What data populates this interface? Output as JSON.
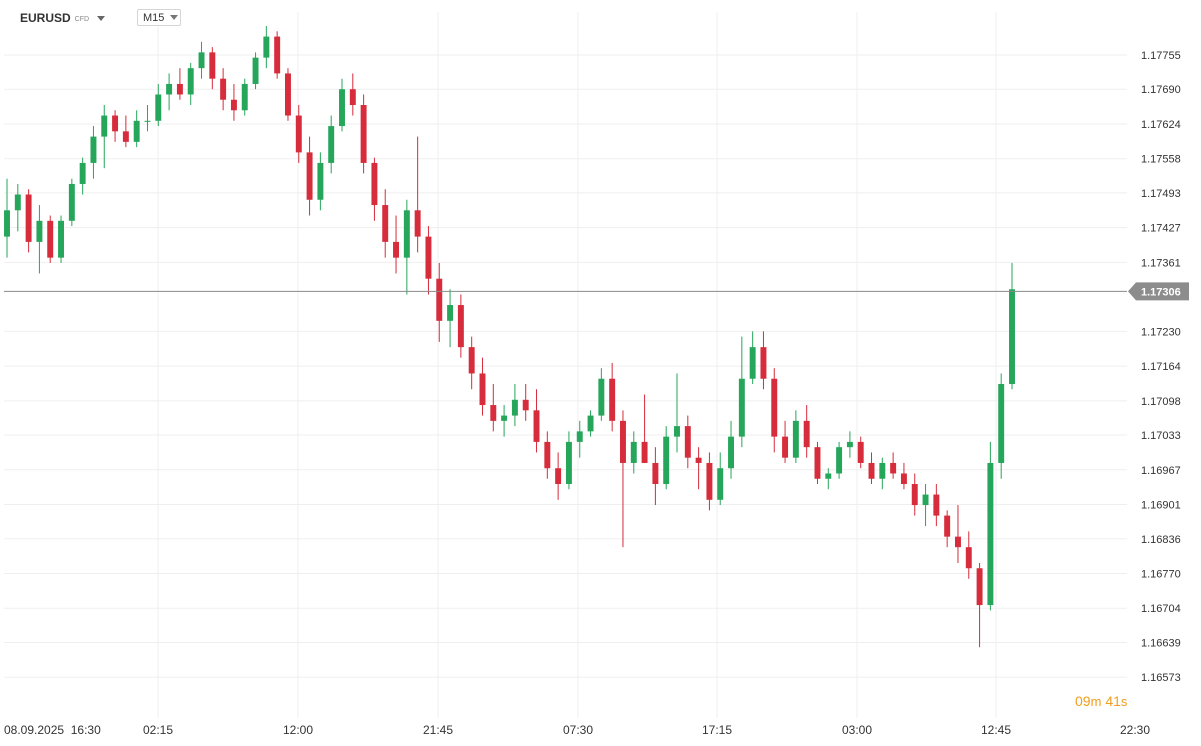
{
  "header": {
    "symbol": "EURUSD",
    "symbol_type": "CFD",
    "timeframe": "M15"
  },
  "countdown": {
    "minutes": "09",
    "minutes_unit": "m",
    "seconds": "41",
    "seconds_unit": "s"
  },
  "colors": {
    "up": "#26a65b",
    "down": "#d62c3b",
    "grid": "#efefef",
    "last_price_line": "#8a8a8a",
    "last_price_badge": "#8c8c8c",
    "countdown": "#f29d1e"
  },
  "chart_data": {
    "type": "candlestick",
    "symbol": "EURUSD",
    "timeframe": "M15",
    "last_price": 1.17306,
    "y_ticks": [
      "1.17755",
      "1.17690",
      "1.17624",
      "1.17558",
      "1.17493",
      "1.17427",
      "1.17361",
      "1.17230",
      "1.17164",
      "1.17098",
      "1.17033",
      "1.16967",
      "1.16901",
      "1.16836",
      "1.16770",
      "1.16704",
      "1.16639",
      "1.16573"
    ],
    "ylim": [
      1.16573,
      1.17821
    ],
    "x_ticks": [
      "08.09.2025  16:30",
      "02:15",
      "12:00",
      "21:45",
      "07:30",
      "17:15",
      "03:00",
      "12:45",
      "22:30"
    ],
    "grid": true,
    "candles_ohlc_approx": [
      [
        1.1741,
        1.1752,
        1.1737,
        1.1746
      ],
      [
        1.1746,
        1.1751,
        1.1742,
        1.1749
      ],
      [
        1.1749,
        1.175,
        1.1738,
        1.174
      ],
      [
        1.174,
        1.1747,
        1.1734,
        1.1744
      ],
      [
        1.1744,
        1.1745,
        1.1736,
        1.1737
      ],
      [
        1.1737,
        1.1745,
        1.1736,
        1.1744
      ],
      [
        1.1744,
        1.1752,
        1.1743,
        1.1751
      ],
      [
        1.1751,
        1.1756,
        1.1749,
        1.1755
      ],
      [
        1.1755,
        1.1762,
        1.1752,
        1.176
      ],
      [
        1.176,
        1.1766,
        1.1754,
        1.1764
      ],
      [
        1.1764,
        1.1765,
        1.1759,
        1.1761
      ],
      [
        1.1761,
        1.1764,
        1.1758,
        1.1759
      ],
      [
        1.1759,
        1.1765,
        1.1758,
        1.1763
      ],
      [
        1.1763,
        1.1766,
        1.1761,
        1.1763
      ],
      [
        1.1763,
        1.177,
        1.1762,
        1.1768
      ],
      [
        1.1768,
        1.1772,
        1.1765,
        1.177
      ],
      [
        1.177,
        1.1773,
        1.1767,
        1.1768
      ],
      [
        1.1768,
        1.1774,
        1.1766,
        1.1773
      ],
      [
        1.1773,
        1.1778,
        1.1771,
        1.1776
      ],
      [
        1.1776,
        1.1777,
        1.1769,
        1.1771
      ],
      [
        1.1771,
        1.1773,
        1.1765,
        1.1767
      ],
      [
        1.1767,
        1.177,
        1.1763,
        1.1765
      ],
      [
        1.1765,
        1.1771,
        1.1764,
        1.177
      ],
      [
        1.177,
        1.1776,
        1.1769,
        1.1775
      ],
      [
        1.1775,
        1.1781,
        1.1773,
        1.1779
      ],
      [
        1.1779,
        1.178,
        1.1771,
        1.1772
      ],
      [
        1.1772,
        1.1773,
        1.1763,
        1.1764
      ],
      [
        1.1764,
        1.1766,
        1.1755,
        1.1757
      ],
      [
        1.1757,
        1.176,
        1.1745,
        1.1748
      ],
      [
        1.1748,
        1.1757,
        1.1746,
        1.1755
      ],
      [
        1.1755,
        1.1764,
        1.1753,
        1.1762
      ],
      [
        1.1762,
        1.1771,
        1.1761,
        1.1769
      ],
      [
        1.1769,
        1.1772,
        1.1764,
        1.1766
      ],
      [
        1.1766,
        1.1768,
        1.1753,
        1.1755
      ],
      [
        1.1755,
        1.1756,
        1.1744,
        1.1747
      ],
      [
        1.1747,
        1.175,
        1.1737,
        1.174
      ],
      [
        1.174,
        1.1745,
        1.1734,
        1.1737
      ],
      [
        1.1737,
        1.1748,
        1.173,
        1.1746
      ],
      [
        1.1746,
        1.176,
        1.1738,
        1.1741
      ],
      [
        1.1741,
        1.1743,
        1.173,
        1.1733
      ],
      [
        1.1733,
        1.1736,
        1.1721,
        1.1725
      ],
      [
        1.1725,
        1.1731,
        1.172,
        1.1728
      ],
      [
        1.1728,
        1.173,
        1.1718,
        1.172
      ],
      [
        1.172,
        1.1722,
        1.1712,
        1.1715
      ],
      [
        1.1715,
        1.1718,
        1.1707,
        1.1709
      ],
      [
        1.1709,
        1.1713,
        1.1704,
        1.1706
      ],
      [
        1.1706,
        1.1709,
        1.1703,
        1.1707
      ],
      [
        1.1707,
        1.1713,
        1.1705,
        1.171
      ],
      [
        1.171,
        1.1713,
        1.1706,
        1.1708
      ],
      [
        1.1708,
        1.1712,
        1.17,
        1.1702
      ],
      [
        1.1702,
        1.1704,
        1.1695,
        1.1697
      ],
      [
        1.1697,
        1.17,
        1.1691,
        1.1694
      ],
      [
        1.1694,
        1.1704,
        1.1693,
        1.1702
      ],
      [
        1.1702,
        1.1706,
        1.1699,
        1.1704
      ],
      [
        1.1704,
        1.1708,
        1.1703,
        1.1707
      ],
      [
        1.1707,
        1.1716,
        1.1706,
        1.1714
      ],
      [
        1.1714,
        1.1717,
        1.1704,
        1.1706
      ],
      [
        1.1706,
        1.1708,
        1.1682,
        1.1698
      ],
      [
        1.1698,
        1.1704,
        1.1696,
        1.1702
      ],
      [
        1.1702,
        1.1711,
        1.1698,
        1.1698
      ],
      [
        1.1698,
        1.1701,
        1.169,
        1.1694
      ],
      [
        1.1694,
        1.1705,
        1.1693,
        1.1703
      ],
      [
        1.1703,
        1.1715,
        1.17,
        1.1705
      ],
      [
        1.1705,
        1.1707,
        1.1697,
        1.1699
      ],
      [
        1.1699,
        1.1701,
        1.1693,
        1.1698
      ],
      [
        1.1698,
        1.17,
        1.1689,
        1.1691
      ],
      [
        1.1691,
        1.17,
        1.169,
        1.1697
      ],
      [
        1.1697,
        1.1706,
        1.1695,
        1.1703
      ],
      [
        1.1703,
        1.1722,
        1.1701,
        1.1714
      ],
      [
        1.1714,
        1.1723,
        1.1713,
        1.172
      ],
      [
        1.172,
        1.1723,
        1.1712,
        1.1714
      ],
      [
        1.1714,
        1.1716,
        1.17,
        1.1703
      ],
      [
        1.1703,
        1.1706,
        1.1698,
        1.1699
      ],
      [
        1.1699,
        1.1708,
        1.1698,
        1.1706
      ],
      [
        1.1706,
        1.1709,
        1.1699,
        1.1701
      ],
      [
        1.1701,
        1.1702,
        1.1694,
        1.1695
      ],
      [
        1.1695,
        1.1697,
        1.1693,
        1.1696
      ],
      [
        1.1696,
        1.1702,
        1.1695,
        1.1701
      ],
      [
        1.1701,
        1.1704,
        1.1699,
        1.1702
      ],
      [
        1.1702,
        1.1703,
        1.1697,
        1.1698
      ],
      [
        1.1698,
        1.17,
        1.1694,
        1.1695
      ],
      [
        1.1695,
        1.1699,
        1.1693,
        1.1698
      ],
      [
        1.1698,
        1.17,
        1.1695,
        1.1696
      ],
      [
        1.1696,
        1.1698,
        1.1693,
        1.1694
      ],
      [
        1.1694,
        1.1696,
        1.1688,
        1.169
      ],
      [
        1.169,
        1.1694,
        1.1686,
        1.1692
      ],
      [
        1.1692,
        1.1694,
        1.1686,
        1.1688
      ],
      [
        1.1688,
        1.1689,
        1.1682,
        1.1684
      ],
      [
        1.1684,
        1.169,
        1.1679,
        1.1682
      ],
      [
        1.1682,
        1.1685,
        1.1676,
        1.1678
      ],
      [
        1.1678,
        1.1679,
        1.1663,
        1.1671
      ],
      [
        1.1671,
        1.1702,
        1.167,
        1.1698
      ],
      [
        1.1698,
        1.1715,
        1.1695,
        1.1713
      ],
      [
        1.1713,
        1.1736,
        1.1712,
        1.1731
      ]
    ]
  }
}
